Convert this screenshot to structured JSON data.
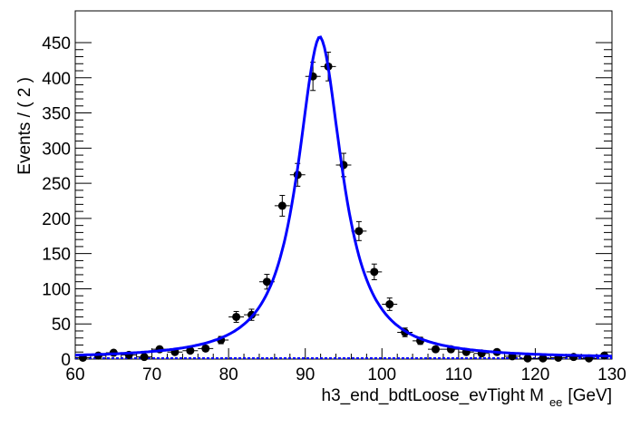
{
  "chart_data": {
    "type": "scatter",
    "title": "",
    "xlabel": "h3_end_bdtLoose_evTight  M",
    "xlabel_sub": "ee",
    "xlabel_unit": "[GeV]",
    "ylabel": "Events / ( 2 )",
    "xlim": [
      60,
      130
    ],
    "ylim": [
      0,
      460
    ],
    "xticks": [
      "60",
      "70",
      "80",
      "90",
      "100",
      "110",
      "120",
      "130"
    ],
    "yticks": [
      "0",
      "50",
      "100",
      "150",
      "200",
      "250",
      "300",
      "350",
      "400",
      "450"
    ],
    "bin_width": 2,
    "series": [
      {
        "name": "data",
        "type": "points-with-errors",
        "x": [
          61,
          63,
          65,
          67,
          69,
          71,
          73,
          75,
          77,
          79,
          81,
          83,
          85,
          87,
          89,
          91,
          93,
          95,
          97,
          99,
          101,
          103,
          105,
          107,
          109,
          111,
          113,
          115,
          117,
          119,
          121,
          123,
          125,
          127,
          129
        ],
        "y": [
          2,
          5,
          9,
          6,
          3,
          14,
          10,
          12,
          15,
          27,
          60,
          63,
          110,
          218,
          262,
          402,
          416,
          276,
          182,
          124,
          78,
          38,
          26,
          14,
          14,
          10,
          8,
          10,
          4,
          1,
          1,
          2,
          3,
          1,
          5
        ]
      },
      {
        "name": "fit",
        "type": "line",
        "color": "#0000ff",
        "peak": 457,
        "mean": 91.9,
        "gamma": 3.7,
        "tail": 2
      }
    ]
  }
}
